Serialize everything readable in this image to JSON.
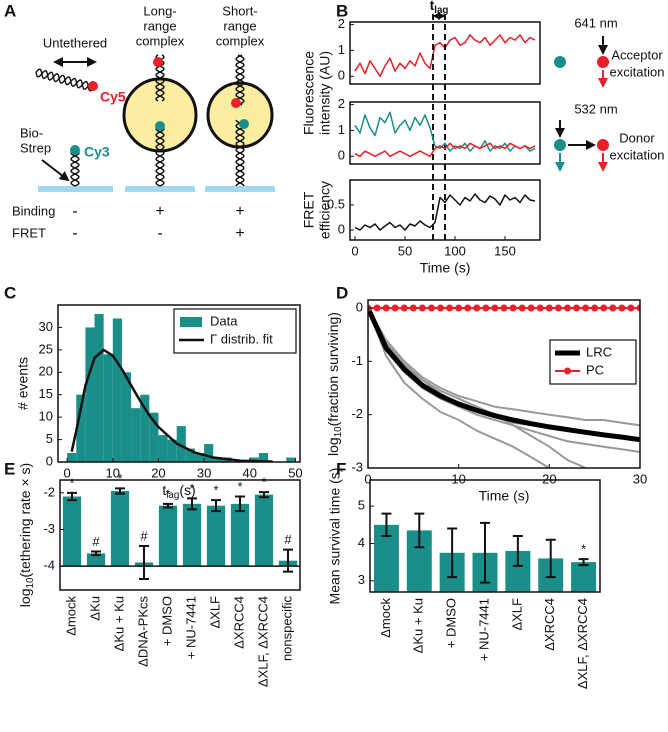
{
  "panel_labels": [
    "A",
    "B",
    "C",
    "D",
    "E",
    "F"
  ],
  "schematic": {
    "titles": [
      [
        "Untethered"
      ],
      [
        "Long-",
        "range",
        "complex"
      ],
      [
        "Short-",
        "range",
        "complex"
      ]
    ],
    "acceptor_label": "Cy5",
    "donor_label": "Cy3",
    "anchor_label": [
      "Bio-",
      "Strep"
    ],
    "rows": [
      {
        "label": "Binding",
        "cells": [
          "-",
          "+",
          "+"
        ]
      },
      {
        "label": "FRET",
        "cells": [
          "-",
          "-",
          "+"
        ]
      }
    ]
  },
  "chart_data": [
    {
      "type": "line",
      "ylabel_lines": [
        "Fluorescence",
        "intensity (AU)"
      ],
      "tlag_label": {
        "base": "t",
        "sub": "lag"
      },
      "tlag_lines": [
        78,
        90
      ],
      "annotation": {
        "wavelength": "641 nm",
        "label_lines": [
          "Acceptor",
          "excitation"
        ]
      },
      "x": [
        0,
        5,
        10,
        15,
        20,
        25,
        30,
        35,
        40,
        45,
        50,
        55,
        60,
        65,
        70,
        75,
        80,
        85,
        90,
        95,
        100,
        105,
        110,
        115,
        120,
        125,
        130,
        135,
        140,
        145,
        150,
        155,
        160,
        165,
        170,
        175,
        180
      ],
      "xlim": [
        -5,
        185
      ],
      "ylim": [
        -0.3,
        2.1
      ],
      "yticks": [
        0,
        1,
        2
      ],
      "series": [
        {
          "color": "#e8202a",
          "values": [
            0.2,
            0.5,
            0.1,
            0.6,
            0.3,
            0.0,
            0.4,
            0.7,
            0.2,
            0.5,
            0.3,
            0.6,
            0.4,
            0.9,
            0.5,
            0.3,
            1.2,
            1.3,
            1.1,
            1.4,
            1.5,
            1.2,
            1.3,
            1.6,
            1.4,
            1.3,
            1.5,
            1.2,
            1.4,
            1.6,
            1.3,
            1.5,
            1.4,
            1.6,
            1.3,
            1.5,
            1.4
          ]
        }
      ]
    },
    {
      "type": "line",
      "annotation": {
        "wavelength": "532 nm",
        "label_lines": [
          "Donor",
          "excitation"
        ]
      },
      "x": [
        0,
        5,
        10,
        15,
        20,
        25,
        30,
        35,
        40,
        45,
        50,
        55,
        60,
        65,
        70,
        75,
        80,
        85,
        90,
        95,
        100,
        105,
        110,
        115,
        120,
        125,
        130,
        135,
        140,
        145,
        150,
        155,
        160,
        165,
        170,
        175,
        180
      ],
      "xlim": [
        -5,
        185
      ],
      "ylim": [
        -0.3,
        2.1
      ],
      "yticks": [
        0,
        1,
        2
      ],
      "series": [
        {
          "color": "#1a8f8a",
          "values": [
            1.2,
            0.9,
            1.6,
            1.1,
            0.8,
            1.5,
            1.3,
            1.7,
            0.9,
            1.2,
            1.4,
            1.0,
            1.5,
            1.2,
            1.6,
            1.1,
            0.4,
            0.3,
            0.5,
            0.2,
            0.4,
            0.3,
            0.5,
            0.2,
            0.4,
            0.3,
            0.6,
            0.2,
            0.4,
            0.3,
            0.5,
            0.2,
            0.4,
            0.3,
            0.4,
            0.2,
            0.3
          ]
        },
        {
          "color": "#e8202a",
          "values": [
            0.1,
            0.0,
            0.2,
            0.1,
            0.0,
            0.1,
            0.2,
            0.0,
            0.1,
            0.2,
            0.1,
            0.0,
            0.1,
            0.2,
            0.1,
            0.0,
            0.3,
            0.4,
            0.3,
            0.5,
            0.3,
            0.4,
            0.3,
            0.5,
            0.4,
            0.3,
            0.4,
            0.5,
            0.3,
            0.4,
            0.3,
            0.5,
            0.4,
            0.3,
            0.4,
            0.3,
            0.4
          ]
        }
      ]
    },
    {
      "type": "line",
      "ylabel_lines": [
        "FRET",
        "efficiency"
      ],
      "xlabel": "Time (s)",
      "x": [
        0,
        5,
        10,
        15,
        20,
        25,
        30,
        35,
        40,
        45,
        50,
        55,
        60,
        65,
        70,
        75,
        80,
        85,
        90,
        95,
        100,
        105,
        110,
        115,
        120,
        125,
        130,
        135,
        140,
        145,
        150,
        155,
        160,
        165,
        170,
        175,
        180
      ],
      "xlim": [
        -5,
        185
      ],
      "xticks": [
        0,
        50,
        100,
        150
      ],
      "ylim": [
        -0.2,
        1.0
      ],
      "yticks": [
        0,
        0.5
      ],
      "series": [
        {
          "color": "#111111",
          "values": [
            0.05,
            0.0,
            0.1,
            0.05,
            0.12,
            0.0,
            0.08,
            0.15,
            0.05,
            0.1,
            0.0,
            0.12,
            0.08,
            0.18,
            0.1,
            0.05,
            0.15,
            0.65,
            0.55,
            0.7,
            0.6,
            0.5,
            0.65,
            0.58,
            0.72,
            0.6,
            0.55,
            0.68,
            0.62,
            0.5,
            0.7,
            0.6,
            0.65,
            0.55,
            0.7,
            0.6,
            0.58
          ]
        }
      ]
    },
    {
      "type": "histogram",
      "ylabel": "# events",
      "xlabel_rich": {
        "base": "t",
        "sub": "lag",
        "suffix": "(s)"
      },
      "bins": [
        0,
        2,
        4,
        6,
        8,
        10,
        12,
        14,
        16,
        18,
        20,
        22,
        24,
        26,
        28,
        30,
        32,
        34,
        36,
        38,
        40,
        42,
        44,
        46,
        48,
        50
      ],
      "xlim": [
        -2,
        51
      ],
      "xticks": [
        0,
        10,
        20,
        30,
        40,
        50
      ],
      "ylim": [
        0,
        35
      ],
      "yticks": [
        0,
        5,
        10,
        15,
        20,
        25,
        30
      ],
      "legend": "upper right",
      "series": [
        {
          "name": "Data",
          "color": "#1a8f8a",
          "values": [
            2,
            15,
            30,
            33,
            24,
            32,
            20,
            12,
            15,
            11,
            6,
            5,
            8,
            3,
            2,
            4,
            1,
            1,
            0,
            0,
            1,
            2,
            0,
            0,
            1
          ]
        },
        {
          "name": "Γ distrib. fit",
          "color": "#111111",
          "x": [
            1,
            2,
            4,
            6,
            8,
            10,
            12,
            14,
            16,
            18,
            20,
            24,
            28,
            32,
            38,
            45
          ],
          "values": [
            2.3,
            7.0,
            17.0,
            23.2,
            25.0,
            23.7,
            20.7,
            17.1,
            13.6,
            10.4,
            7.8,
            4.1,
            2.1,
            1.0,
            0.3,
            0.1
          ]
        }
      ]
    },
    {
      "type": "line",
      "xlabel": "Time (s)",
      "ylabel_rich": {
        "base": "log",
        "sub": "10",
        "suffix": "(fraction surviving)"
      },
      "xlim": [
        0,
        30
      ],
      "xticks": [
        0,
        10,
        20,
        30
      ],
      "ylim": [
        -3,
        0.15
      ],
      "yticks": [
        -3,
        -2,
        -1,
        0
      ],
      "legend": "upper right",
      "series": [
        {
          "color": "#999999",
          "linewidth": 2,
          "x": [
            0,
            2,
            4,
            6,
            8,
            10,
            12,
            14,
            16,
            18,
            20
          ],
          "values": [
            0,
            -0.9,
            -1.4,
            -1.7,
            -1.95,
            -2.1,
            -2.3,
            -2.45,
            -2.6,
            -2.8,
            -3.0
          ]
        },
        {
          "color": "#999999",
          "linewidth": 2,
          "x": [
            0,
            2,
            4,
            6,
            8,
            10,
            12,
            14,
            16,
            18,
            20,
            22,
            24,
            26,
            28,
            30
          ],
          "values": [
            0,
            -0.6,
            -1.0,
            -1.3,
            -1.5,
            -1.65,
            -1.75,
            -1.85,
            -1.9,
            -1.95,
            -2.0,
            -2.05,
            -2.1,
            -2.1,
            -2.15,
            -2.2
          ]
        },
        {
          "color": "#999999",
          "linewidth": 2,
          "x": [
            0,
            2,
            4,
            6,
            8,
            10,
            12,
            14,
            16,
            18,
            20,
            22,
            24,
            26,
            28,
            30
          ],
          "values": [
            0,
            -0.8,
            -1.2,
            -1.5,
            -1.7,
            -1.85,
            -2.0,
            -2.1,
            -2.2,
            -2.3,
            -2.4,
            -2.5,
            -2.55,
            -2.6,
            -2.65,
            -2.7
          ]
        },
        {
          "color": "#999999",
          "linewidth": 2,
          "x": [
            0,
            2,
            4,
            6,
            8,
            10,
            12,
            14,
            16,
            18,
            20,
            22,
            24
          ],
          "values": [
            0,
            -0.7,
            -1.1,
            -1.35,
            -1.55,
            -1.7,
            -1.85,
            -2.0,
            -2.2,
            -2.4,
            -2.6,
            -2.85,
            -3.0
          ]
        },
        {
          "color": "#999999",
          "linewidth": 2,
          "x": [
            0,
            2,
            4,
            6,
            8,
            10,
            12,
            14,
            16,
            18,
            20,
            22,
            24,
            26,
            28,
            30
          ],
          "values": [
            0,
            -0.65,
            -1.05,
            -1.35,
            -1.6,
            -1.8,
            -1.95,
            -2.05,
            -2.15,
            -2.2,
            -2.25,
            -2.3,
            -2.35,
            -2.4,
            -2.4,
            -2.45
          ]
        },
        {
          "name": "LRC",
          "color": "#000000",
          "linewidth": 5,
          "x": [
            0,
            2,
            4,
            6,
            8,
            10,
            12,
            14,
            16,
            18,
            20,
            22,
            24,
            26,
            28,
            30
          ],
          "values": [
            0,
            -0.75,
            -1.15,
            -1.45,
            -1.65,
            -1.8,
            -1.92,
            -2.02,
            -2.1,
            -2.17,
            -2.23,
            -2.28,
            -2.33,
            -2.38,
            -2.42,
            -2.47
          ]
        },
        {
          "name": "PC",
          "color": "#e8202a",
          "linewidth": 2,
          "marker": "o",
          "x": [
            0,
            1,
            2,
            3,
            4,
            5,
            6,
            7,
            8,
            9,
            10,
            11,
            12,
            13,
            14,
            15,
            16,
            17,
            18,
            19,
            20,
            21,
            22,
            23,
            24,
            25,
            26,
            27,
            28,
            29,
            30
          ],
          "values": [
            0,
            0,
            0,
            0,
            0,
            0,
            0,
            0,
            0,
            0,
            0,
            0,
            0,
            0,
            0,
            0,
            0,
            0,
            0,
            0,
            0,
            0,
            0,
            0,
            0,
            0,
            0,
            0,
            0,
            0,
            0
          ]
        }
      ]
    },
    {
      "type": "bar",
      "ylabel_rich": {
        "base": "log",
        "sub": "10",
        "suffix": "(tethering rate × s)"
      },
      "categories": [
        "Δmock",
        "ΔKu",
        "ΔKu + Ku",
        "ΔDNA-PKcs",
        "+ DMSO",
        "+ NU-7441",
        "ΔXLF",
        "ΔXRCC4",
        "ΔXLF, ΔXRCC4",
        "nonspecific"
      ],
      "values": [
        -2.1,
        -3.65,
        -1.95,
        -3.9,
        -2.35,
        -2.3,
        -2.35,
        -2.3,
        -2.05,
        -3.85
      ],
      "errors": [
        0.1,
        0.05,
        0.07,
        0.45,
        0.05,
        0.15,
        0.15,
        0.2,
        0.07,
        0.3
      ],
      "markers": [
        "*",
        "#",
        "*",
        "#",
        "*",
        "*",
        "*",
        "*",
        "*",
        "#"
      ],
      "color": "#1a8f8a",
      "ylim": [
        -4.65,
        -1.65
      ],
      "yticks": [
        -4,
        -3,
        -2
      ],
      "reference_line": -4
    },
    {
      "type": "bar",
      "ylabel": "Mean survival time (s)",
      "categories": [
        "Δmock",
        "ΔKu + Ku",
        "+ DMSO",
        "+ NU-7441",
        "ΔXLF",
        "ΔXRCC4",
        "ΔXLF, ΔXRCC4"
      ],
      "values": [
        4.5,
        4.35,
        3.75,
        3.75,
        3.8,
        3.6,
        3.5
      ],
      "errors": [
        0.3,
        0.45,
        0.65,
        0.8,
        0.4,
        0.5,
        0.08
      ],
      "markers": [
        null,
        null,
        null,
        null,
        null,
        null,
        "*"
      ],
      "color": "#1a8f8a",
      "ylim": [
        2.7,
        5.7
      ],
      "yticks": [
        3,
        4,
        5
      ]
    }
  ]
}
